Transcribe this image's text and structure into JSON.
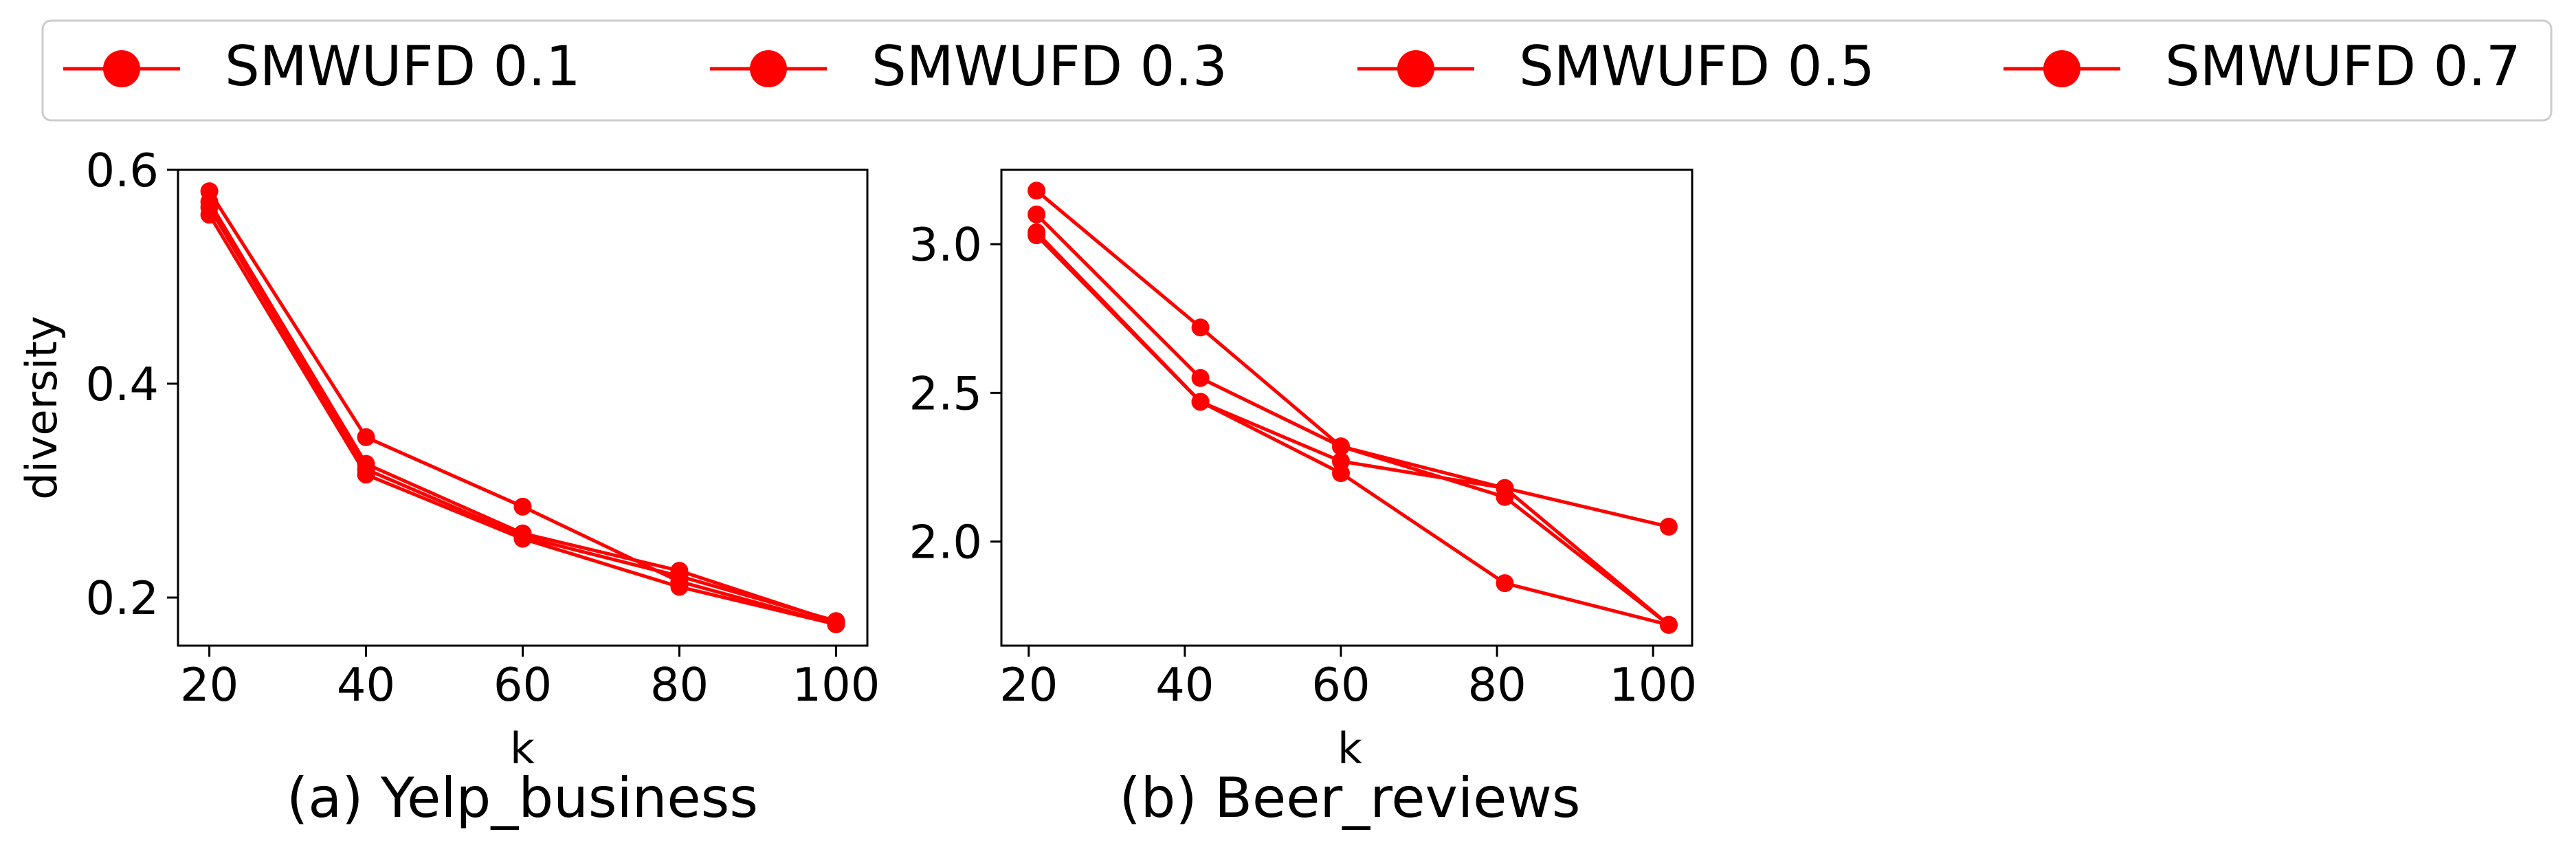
{
  "legend": {
    "entries": [
      "SMWUFD 0.1",
      "SMWUFD 0.3",
      "SMWUFD 0.5",
      "SMWUFD 0.7"
    ]
  },
  "colors": {
    "series": "#ff0000"
  },
  "chart_data": [
    {
      "type": "line",
      "caption": "(a) Yelp_business",
      "xlabel": "k",
      "ylabel": "diversity",
      "x": [
        20,
        40,
        60,
        80,
        100
      ],
      "xticks": [
        20,
        40,
        60,
        80,
        100
      ],
      "yticks": [
        0.2,
        0.4,
        0.6
      ],
      "xlim": [
        16,
        104
      ],
      "ylim": [
        0.155,
        0.6
      ],
      "grid": false,
      "legend_position": "top, shared",
      "series": [
        {
          "name": "SMWUFD 0.1",
          "values": [
            0.58,
            0.35,
            0.285,
            0.215,
            0.175
          ]
        },
        {
          "name": "SMWUFD 0.3",
          "values": [
            0.57,
            0.325,
            0.26,
            0.225,
            0.177
          ]
        },
        {
          "name": "SMWUFD 0.5",
          "values": [
            0.565,
            0.32,
            0.257,
            0.22,
            0.178
          ]
        },
        {
          "name": "SMWUFD 0.7",
          "values": [
            0.558,
            0.315,
            0.255,
            0.21,
            0.175
          ]
        }
      ]
    },
    {
      "type": "line",
      "caption": "(b) Beer_reviews",
      "xlabel": "k",
      "ylabel": "",
      "x": [
        21,
        42,
        60,
        81,
        102
      ],
      "xticks": [
        20,
        40,
        60,
        80,
        100
      ],
      "yticks": [
        2.0,
        2.5,
        3.0
      ],
      "xlim": [
        16.5,
        105
      ],
      "ylim": [
        1.65,
        3.25
      ],
      "grid": false,
      "legend_position": "top, shared",
      "series": [
        {
          "name": "SMWUFD 0.1",
          "values": [
            3.18,
            2.72,
            2.32,
            2.18,
            2.05
          ]
        },
        {
          "name": "SMWUFD 0.3",
          "values": [
            3.1,
            2.55,
            2.32,
            2.15,
            1.72
          ]
        },
        {
          "name": "SMWUFD 0.5",
          "values": [
            3.04,
            2.47,
            2.27,
            2.18,
            1.72
          ]
        },
        {
          "name": "SMWUFD 0.7",
          "values": [
            3.03,
            2.47,
            2.23,
            1.86,
            1.72
          ]
        }
      ]
    }
  ]
}
